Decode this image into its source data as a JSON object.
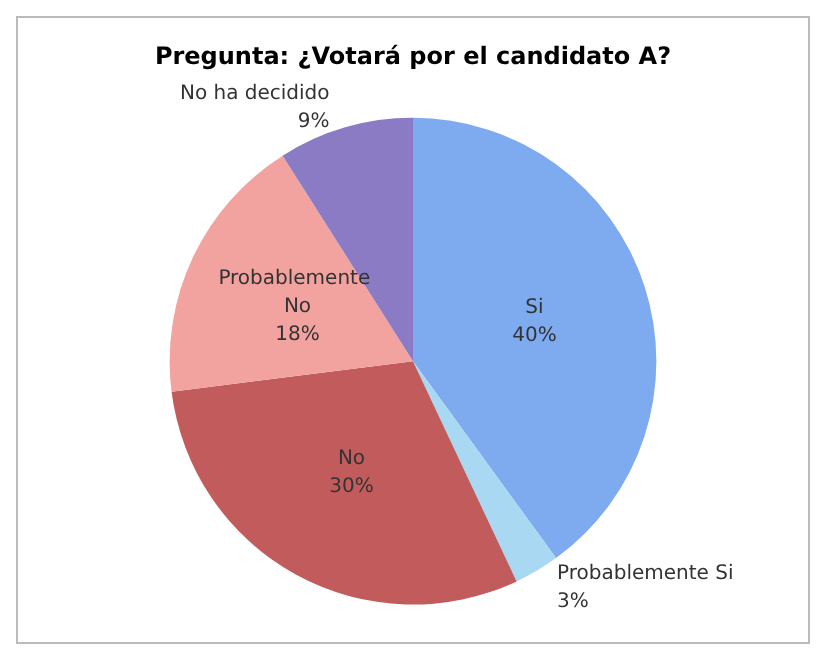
{
  "chart_data": {
    "type": "pie",
    "title": "Pregunta: ¿Votará por el candidato A?",
    "categories": [
      "Si",
      "Probablemente Si",
      "No",
      "Probablemente No",
      "No ha decidido"
    ],
    "values": [
      40,
      3,
      30,
      18,
      9
    ],
    "value_labels": [
      "40%",
      "3%",
      "30%",
      "18%",
      "9%"
    ],
    "colors": [
      "#7eaaf0",
      "#a9d8f2",
      "#c25b5b",
      "#f2a3a0",
      "#8a7bc4"
    ],
    "legend": false
  }
}
